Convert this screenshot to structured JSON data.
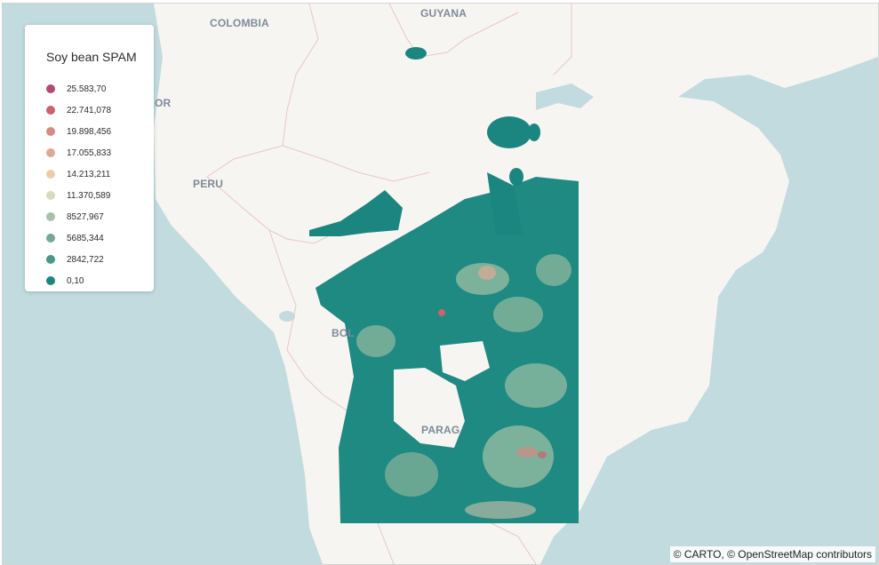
{
  "legend": {
    "title": "Soy bean SPAM",
    "items": [
      {
        "label": "25.583,70",
        "color": "#b34a73"
      },
      {
        "label": "22.741,078",
        "color": "#c9636f"
      },
      {
        "label": "19.898,456",
        "color": "#d58a83"
      },
      {
        "label": "17.055,833",
        "color": "#dea996"
      },
      {
        "label": "14.213,211",
        "color": "#e9cfa7"
      },
      {
        "label": "11.370,589",
        "color": "#d7dbbd"
      },
      {
        "label": "8527,967",
        "color": "#a7c2a6"
      },
      {
        "label": "5685,344",
        "color": "#76a994"
      },
      {
        "label": "2842,722",
        "color": "#4a9688"
      },
      {
        "label": "0,10",
        "color": "#1b867f"
      }
    ]
  },
  "map_labels": {
    "colombia": "COLOMBIA",
    "guyana": "GUYANA",
    "ecuador_partial": "OR",
    "peru": "PERU",
    "bolivia_partial": "BOL",
    "paraguay_partial": "PARAG"
  },
  "attribution": {
    "carto": "© CARTO, ",
    "osm": "© OpenStreetMap",
    "contributors": " contributors"
  },
  "colors": {
    "land": "#f7f5f1",
    "water": "#c1dbdf",
    "border": "#e5c7cc",
    "data_base": "#1b867f"
  }
}
